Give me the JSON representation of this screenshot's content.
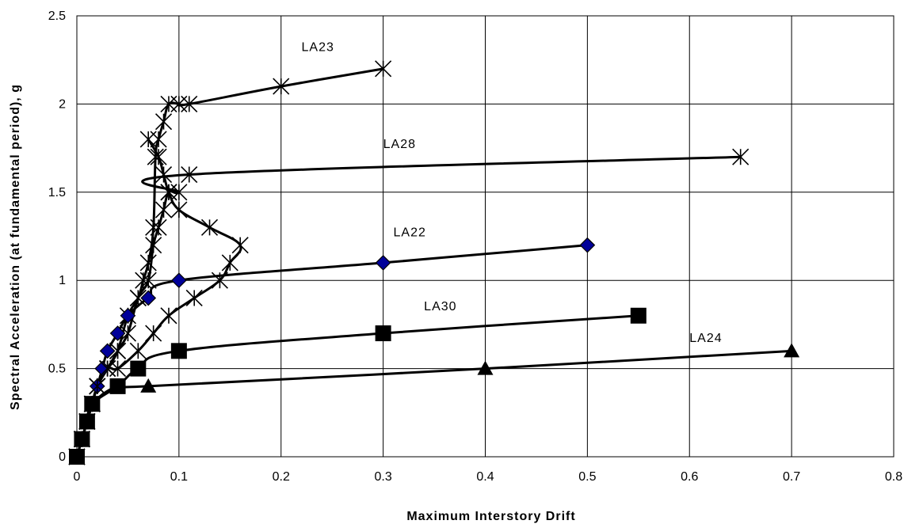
{
  "chart_data": {
    "type": "line",
    "title": "",
    "xlabel": "Maximum Interstory Drift",
    "ylabel": "Spectral Acceleration (at fundamental period), g",
    "xlim": [
      0,
      0.8
    ],
    "ylim": [
      0,
      2.5
    ],
    "xticks": [
      0,
      0.1,
      0.2,
      0.3,
      0.4,
      0.5,
      0.6,
      0.7,
      0.8
    ],
    "yticks": [
      0,
      0.5,
      1,
      1.5,
      2,
      2.5
    ],
    "xtick_labels": [
      "0",
      "0.1",
      "0.2",
      "0.3",
      "0.4",
      "0.5",
      "0.6",
      "0.7",
      "0.8"
    ],
    "ytick_labels": [
      "0",
      "0.5",
      "1",
      "1.5",
      "2",
      "2.5"
    ],
    "grid": true,
    "series": [
      {
        "name": "LA23",
        "marker": "star",
        "marker_color": "#000000",
        "x": [
          0,
          0.005,
          0.01,
          0.015,
          0.02,
          0.03,
          0.04,
          0.05,
          0.06,
          0.065,
          0.07,
          0.075,
          0.077,
          0.08,
          0.085,
          0.09,
          0.1,
          0.11,
          0.2,
          0.3
        ],
        "y": [
          0,
          0.1,
          0.2,
          0.3,
          0.4,
          0.5,
          0.6,
          0.8,
          0.9,
          1.0,
          1.1,
          1.3,
          1.7,
          1.8,
          1.9,
          2.0,
          2.0,
          2.0,
          2.1,
          2.2
        ]
      },
      {
        "name": "LA28",
        "marker": "star",
        "marker_color": "#000000",
        "x": [
          0,
          0.005,
          0.01,
          0.015,
          0.02,
          0.03,
          0.04,
          0.05,
          0.06,
          0.07,
          0.075,
          0.08,
          0.085,
          0.09,
          0.1,
          0.11,
          0.65
        ],
        "y": [
          0,
          0.1,
          0.2,
          0.3,
          0.4,
          0.5,
          0.6,
          0.7,
          0.9,
          1.0,
          1.2,
          1.3,
          1.4,
          1.5,
          1.5,
          1.6,
          1.7
        ]
      },
      {
        "name": "LA22",
        "marker": "diamond",
        "marker_color": "#000099",
        "x": [
          0,
          0.005,
          0.01,
          0.015,
          0.02,
          0.025,
          0.03,
          0.04,
          0.05,
          0.07,
          0.1,
          0.3,
          0.5
        ],
        "y": [
          0,
          0.1,
          0.2,
          0.3,
          0.4,
          0.5,
          0.6,
          0.7,
          0.8,
          0.9,
          1.0,
          1.1,
          1.2
        ]
      },
      {
        "name": "LA30",
        "marker": "square",
        "marker_color": "#000000",
        "x": [
          0,
          0.005,
          0.01,
          0.015,
          0.04,
          0.06,
          0.1,
          0.3,
          0.55
        ],
        "y": [
          0,
          0.1,
          0.2,
          0.3,
          0.4,
          0.5,
          0.6,
          0.7,
          0.8
        ]
      },
      {
        "name": "LA24",
        "marker": "triangle",
        "marker_color": "#000000",
        "x": [
          0,
          0.005,
          0.01,
          0.015,
          0.04,
          0.07,
          0.4,
          0.7
        ],
        "y": [
          0,
          0.1,
          0.2,
          0.3,
          0.4,
          0.4,
          0.5,
          0.6
        ]
      },
      {
        "name": "",
        "marker": "star",
        "marker_color": "#000000",
        "x": [
          0,
          0.005,
          0.01,
          0.015,
          0.02,
          0.03,
          0.04,
          0.06,
          0.075,
          0.09,
          0.115,
          0.14,
          0.15,
          0.16,
          0.13,
          0.1,
          0.09,
          0.085,
          0.08,
          0.07
        ],
        "y": [
          0,
          0.1,
          0.2,
          0.3,
          0.4,
          0.5,
          0.5,
          0.6,
          0.7,
          0.8,
          0.9,
          1.0,
          1.1,
          1.2,
          1.3,
          1.4,
          1.5,
          1.6,
          1.7,
          1.8
        ]
      }
    ],
    "annotations": [
      {
        "text": "LA23",
        "x": 0.22,
        "y": 2.3
      },
      {
        "text": "LA28",
        "x": 0.3,
        "y": 1.75
      },
      {
        "text": "LA22",
        "x": 0.31,
        "y": 1.25
      },
      {
        "text": "LA30",
        "x": 0.34,
        "y": 0.83
      },
      {
        "text": "LA24",
        "x": 0.6,
        "y": 0.65
      }
    ]
  }
}
